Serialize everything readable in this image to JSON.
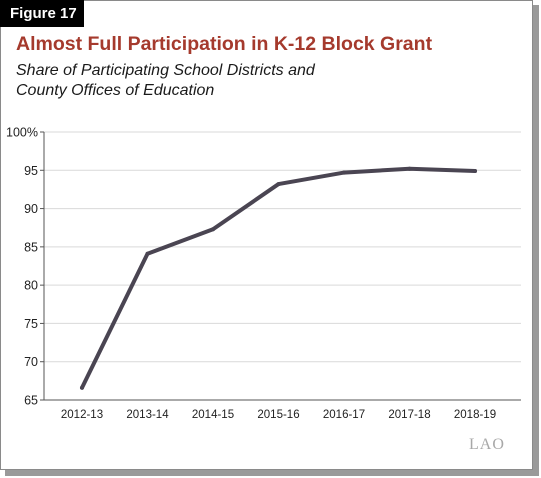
{
  "figure": {
    "label": "Figure 17"
  },
  "title": "Almost Full Participation in K-12 Block Grant",
  "subtitle_lines": [
    "Share of Participating School Districts and",
    "County Offices of Education"
  ],
  "logo": "LAO",
  "colors": {
    "line": "#4a4552",
    "title": "#a53a2d",
    "grid": "#d9d9d9",
    "axis": "#555555"
  },
  "chart_data": {
    "type": "line",
    "title": "Almost Full Participation in K-12 Block Grant",
    "subtitle": "Share of Participating School Districts and County Offices of Education",
    "xlabel": "",
    "ylabel": "",
    "categories": [
      "2012-13",
      "2013-14",
      "2014-15",
      "2015-16",
      "2016-17",
      "2017-18",
      "2018-19"
    ],
    "series": [
      {
        "values": [
          66.6,
          84.1,
          87.3,
          93.2,
          94.7,
          95.2,
          94.9
        ]
      }
    ],
    "ylim": [
      65,
      100
    ],
    "yticks": [
      65,
      70,
      75,
      80,
      85,
      90,
      95,
      100
    ],
    "ytick_labels": [
      "65",
      "70",
      "75",
      "80",
      "85",
      "90",
      "95",
      "100%"
    ],
    "grid": true,
    "legend": "none"
  }
}
